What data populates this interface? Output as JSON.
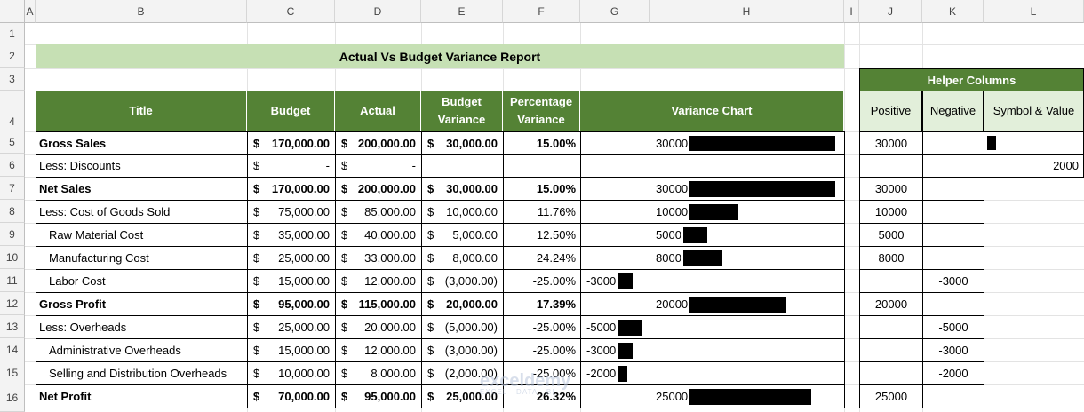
{
  "columns": [
    "A",
    "B",
    "C",
    "D",
    "E",
    "F",
    "G",
    "H",
    "I",
    "J",
    "K",
    "L"
  ],
  "rows": [
    "1",
    "2",
    "3",
    "4",
    "5",
    "6",
    "7",
    "8",
    "9",
    "10",
    "11",
    "12",
    "13",
    "14",
    "15",
    "16"
  ],
  "report_title": "Actual Vs Budget Variance Report",
  "headers": {
    "title": "Title",
    "budget": "Budget",
    "actual": "Actual",
    "budget_variance": "Budget Variance",
    "percentage_variance": "Percentage Variance",
    "variance_chart": "Variance Chart"
  },
  "helper": {
    "title": "Helper Columns",
    "positive": "Positive",
    "negative": "Negative",
    "symbol_value": "Symbol & Value",
    "symbol_bar_value": 1,
    "value_2000": "2000"
  },
  "currency_symbol": "$",
  "table_rows": [
    {
      "title": "Gross Sales",
      "bold": true,
      "indent": false,
      "budget": "170,000.00",
      "actual": "200,000.00",
      "variance": "30,000.00",
      "pct": "15.00%",
      "chart_value": 30000,
      "chart_label": "30000",
      "positive": "30000",
      "negative": "",
      "symbol": true
    },
    {
      "title": "Less: Discounts",
      "bold": false,
      "indent": false,
      "budget": "-",
      "actual": "-",
      "variance": null,
      "pct": "",
      "chart_value": null,
      "chart_label": "",
      "positive": "",
      "negative": "",
      "l_value": "2000"
    },
    {
      "title": "Net Sales",
      "bold": true,
      "indent": false,
      "budget": "170,000.00",
      "actual": "200,000.00",
      "variance": "30,000.00",
      "pct": "15.00%",
      "chart_value": 30000,
      "chart_label": "30000",
      "positive": "30000",
      "negative": ""
    },
    {
      "title": "Less: Cost of Goods Sold",
      "bold": false,
      "indent": false,
      "budget": "75,000.00",
      "actual": "85,000.00",
      "variance": "10,000.00",
      "pct": "11.76%",
      "chart_value": 10000,
      "chart_label": "10000",
      "positive": "10000",
      "negative": ""
    },
    {
      "title": "Raw Material Cost",
      "bold": false,
      "indent": true,
      "budget": "35,000.00",
      "actual": "40,000.00",
      "variance": "5,000.00",
      "pct": "12.50%",
      "chart_value": 5000,
      "chart_label": "5000",
      "positive": "5000",
      "negative": ""
    },
    {
      "title": "Manufacturing Cost",
      "bold": false,
      "indent": true,
      "budget": "25,000.00",
      "actual": "33,000.00",
      "variance": "8,000.00",
      "pct": "24.24%",
      "chart_value": 8000,
      "chart_label": "8000",
      "positive": "8000",
      "negative": ""
    },
    {
      "title": "Labor Cost",
      "bold": false,
      "indent": true,
      "budget": "15,000.00",
      "actual": "12,000.00",
      "variance": "(3,000.00)",
      "pct": "-25.00%",
      "chart_value": -3000,
      "chart_label": "-3000",
      "positive": "",
      "negative": "-3000"
    },
    {
      "title": "Gross Profit",
      "bold": true,
      "indent": false,
      "budget": "95,000.00",
      "actual": "115,000.00",
      "variance": "20,000.00",
      "pct": "17.39%",
      "chart_value": 20000,
      "chart_label": "20000",
      "positive": "20000",
      "negative": ""
    },
    {
      "title": "Less: Overheads",
      "bold": false,
      "indent": false,
      "budget": "25,000.00",
      "actual": "20,000.00",
      "variance": "(5,000.00)",
      "pct": "-25.00%",
      "chart_value": -5000,
      "chart_label": "-5000",
      "positive": "",
      "negative": "-5000"
    },
    {
      "title": "Administrative Overheads",
      "bold": false,
      "indent": true,
      "budget": "15,000.00",
      "actual": "12,000.00",
      "variance": "(3,000.00)",
      "pct": "-25.00%",
      "chart_value": -3000,
      "chart_label": "-3000",
      "positive": "",
      "negative": "-3000"
    },
    {
      "title": "Selling and Distribution Overheads",
      "bold": false,
      "indent": true,
      "budget": "10,000.00",
      "actual": "8,000.00",
      "variance": "(2,000.00)",
      "pct": "-25.00%",
      "chart_value": -2000,
      "chart_label": "-2000",
      "positive": "",
      "negative": "-2000"
    },
    {
      "title": "Net Profit",
      "bold": true,
      "indent": false,
      "budget": "70,000.00",
      "actual": "95,000.00",
      "variance": "25,000.00",
      "pct": "26.32%",
      "chart_value": 25000,
      "chart_label": "25000",
      "positive": "25000",
      "negative": ""
    }
  ],
  "watermark": {
    "name": "exceldemy",
    "tagline": "EXCEL · DATA · BI"
  }
}
